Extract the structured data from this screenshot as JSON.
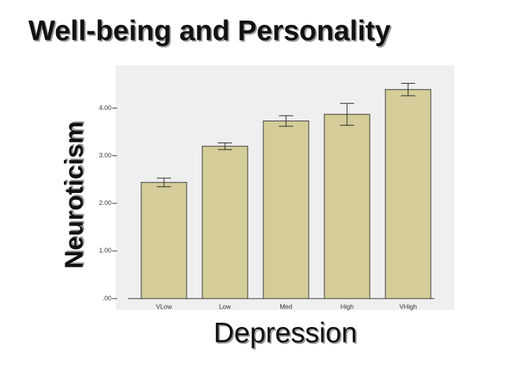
{
  "chart_data": {
    "type": "bar",
    "title": "Well-being and Personality",
    "y_label": "Neuroticism",
    "x_label": "Depression",
    "categories": [
      "VLow",
      "Low",
      "Med",
      "High",
      "VHigh"
    ],
    "values": [
      2.44,
      3.2,
      3.73,
      3.87,
      4.39
    ],
    "errors": [
      0.09,
      0.07,
      0.11,
      0.23,
      0.13
    ],
    "color": "#d4cc99",
    "ylim": [
      0,
      4.9
    ],
    "yticks": [
      {
        "value": 0,
        "label": ".00"
      },
      {
        "value": 1,
        "label": "1.00"
      },
      {
        "value": 2,
        "label": "2.00"
      },
      {
        "value": 3,
        "label": "3.00"
      },
      {
        "value": 4,
        "label": "4.00"
      }
    ]
  }
}
